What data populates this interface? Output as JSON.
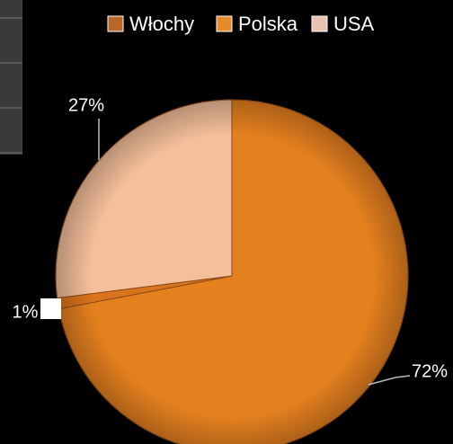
{
  "chart_data": {
    "type": "pie",
    "categories": [
      "Włochy",
      "Polska",
      "USA"
    ],
    "values": [
      72,
      1,
      27
    ],
    "value_labels": [
      "72%",
      "1%",
      "27%"
    ],
    "colors": [
      "#e5801f",
      "#d9741c",
      "#f4bf9a"
    ],
    "legend": "top"
  }
}
